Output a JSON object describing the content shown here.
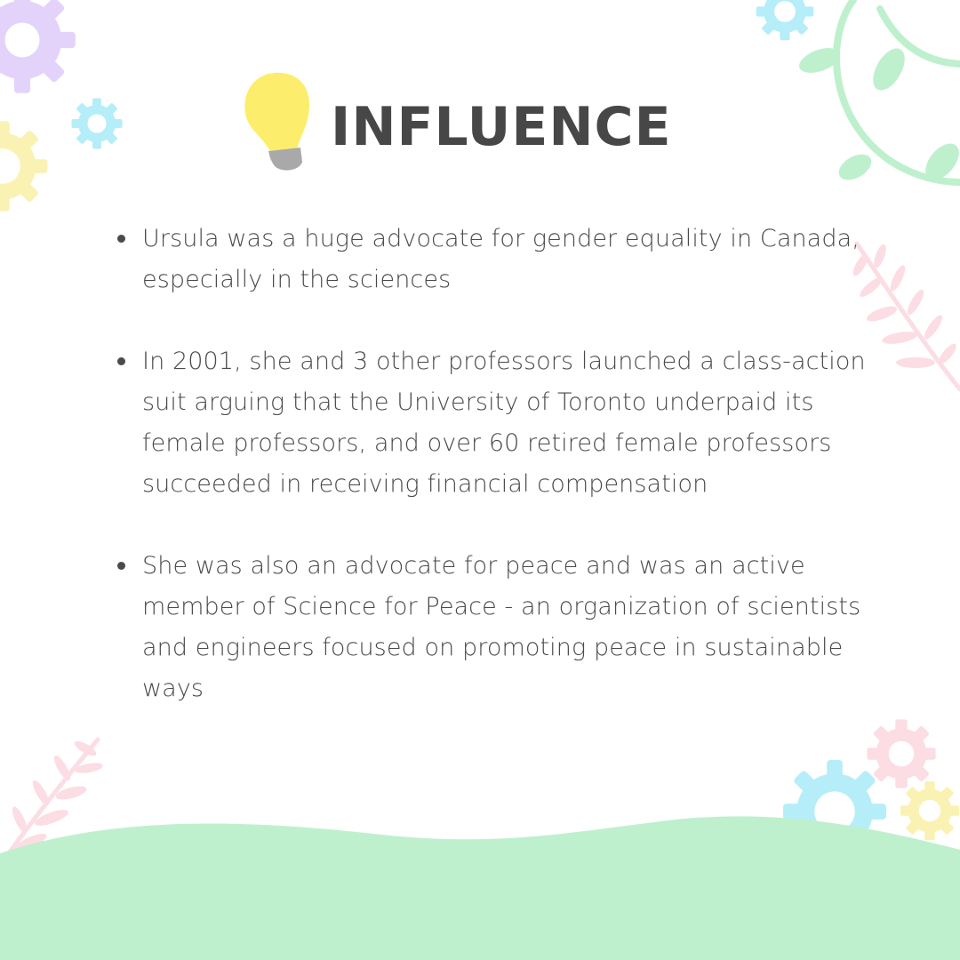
{
  "title": "INFLUENCE",
  "icons": {
    "title_icon": "lightbulb-icon",
    "decor": [
      "gear-icon",
      "leaf-branch-icon",
      "vine-icon"
    ]
  },
  "colors": {
    "background": "#ffffff",
    "text": "#4a4a4a",
    "title": "#474747",
    "bulb": "#fcee6c",
    "bulb_base": "#a9a9a9",
    "green": "#bff0cd",
    "purple": "#e3d3fb",
    "cyan": "#b5eef8",
    "yellow": "#f9f2b3",
    "pink": "#fbdde3"
  },
  "bullets": [
    "Ursula was a huge advocate for gender equality in Canada, especially in the sciences",
    "In 2001, she and 3 other professors launched a class-action suit arguing that the University of Toronto underpaid its female professors, and over 60 retired female professors succeeded in receiving financial compensation",
    "She was also an advocate for peace and was an active member of Science for Peace - an organization of scientists and engineers focused on promoting peace in sustainable ways"
  ]
}
